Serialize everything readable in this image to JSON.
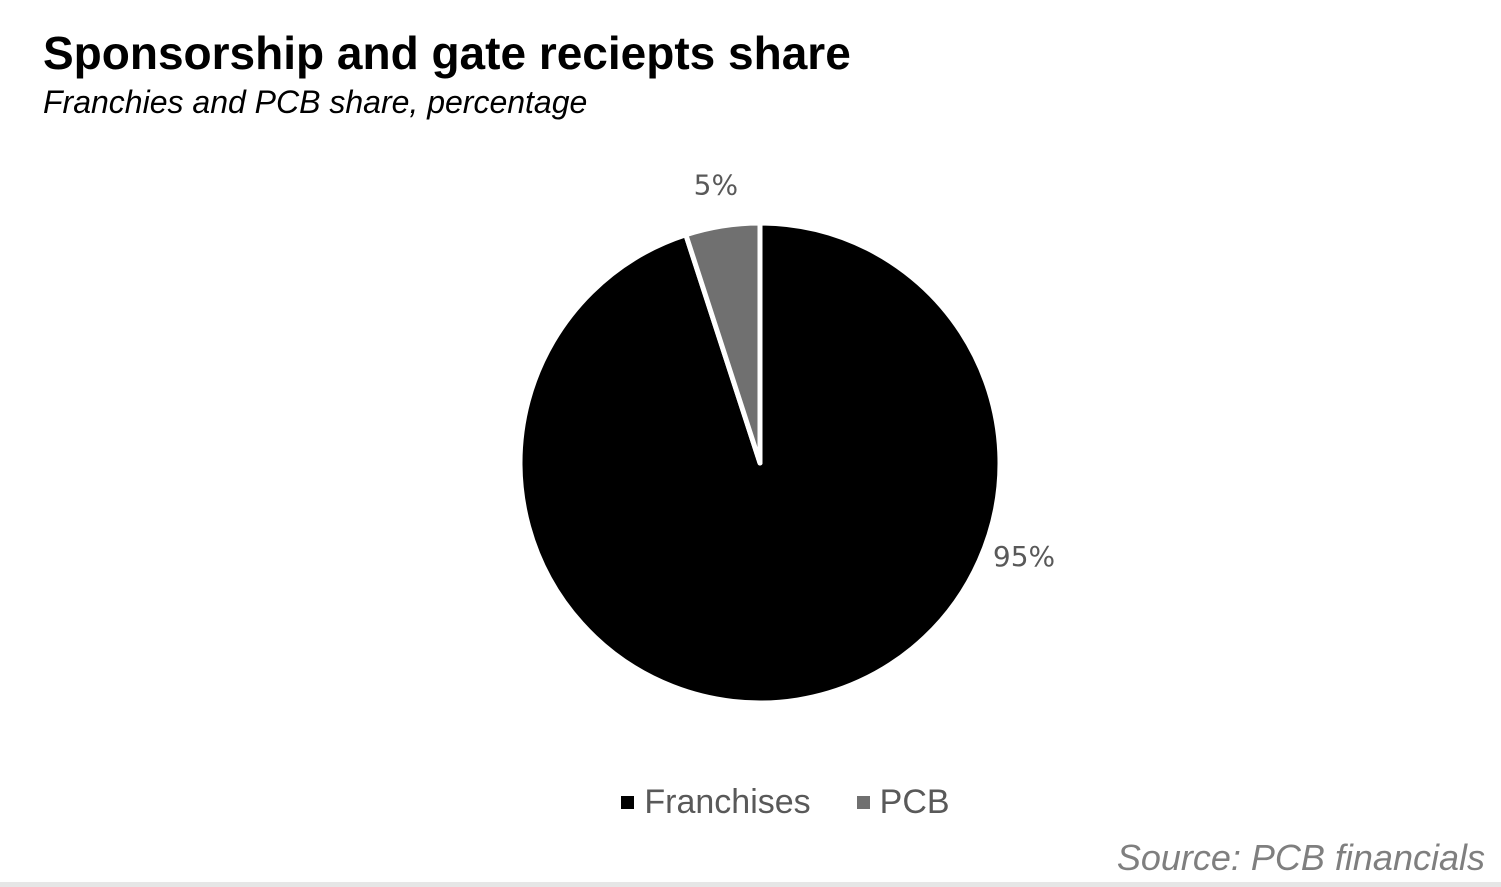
{
  "chart_data": {
    "type": "pie",
    "title": "Sponsorship and gate reciepts share",
    "subtitle": "Franchies and PCB share, percentage",
    "slices": [
      {
        "name": "Franchises",
        "value": 95,
        "label": "95%",
        "color": "#000000"
      },
      {
        "name": "PCB",
        "value": 5,
        "label": "5%",
        "color": "#707070"
      }
    ],
    "legend_placement": "bottom",
    "start_angle_deg": 0,
    "direction": "clockwise",
    "slice_border_color": "#ffffff"
  },
  "source": "Source: PCB financials"
}
